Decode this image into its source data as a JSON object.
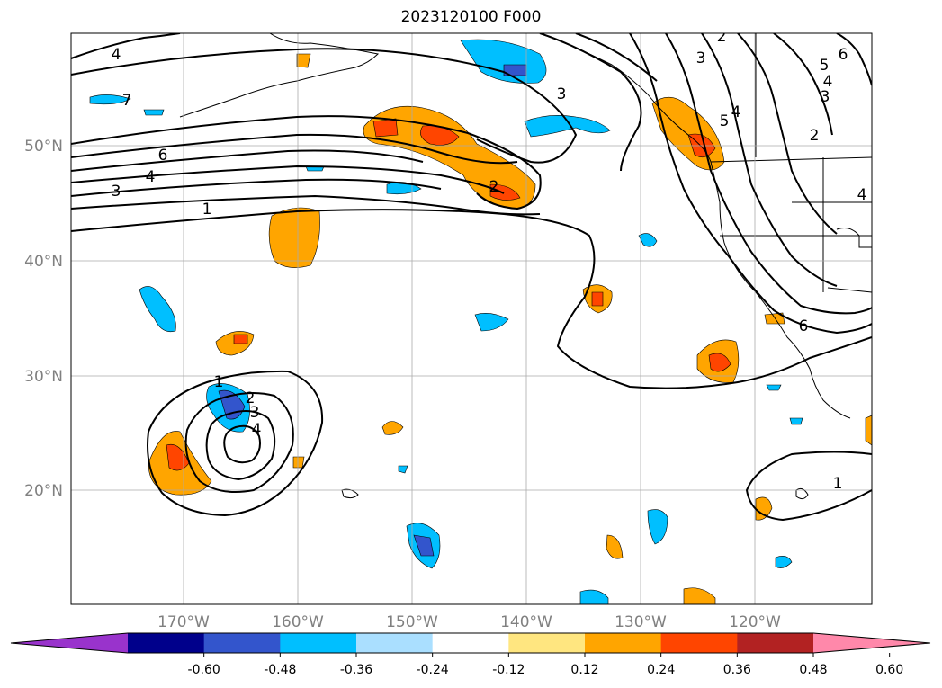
{
  "title": "2023120100 F000",
  "lat_labels": [
    "50°N",
    "40°N",
    "30°N",
    "20°N"
  ],
  "lon_labels": [
    "170°W",
    "160°W",
    "150°W",
    "140°W",
    "130°W",
    "120°W"
  ],
  "contour_labels": [
    "4",
    "7",
    "6",
    "4",
    "3",
    "1",
    "2",
    "3",
    "2",
    "3",
    "5",
    "4",
    "3",
    "5",
    "4",
    "6",
    "2",
    "4",
    "1",
    "2",
    "3",
    "4",
    "6",
    "1"
  ],
  "colorbar": {
    "ticks": [
      "-0.60",
      "-0.48",
      "-0.36",
      "-0.24",
      "-0.12",
      "0.12",
      "0.24",
      "0.36",
      "0.48",
      "0.60"
    ],
    "colors": [
      "#9933cc",
      "#00008b",
      "#3355cc",
      "#00bfff",
      "#aadfff",
      "#ffffff",
      "#ffe680",
      "#ffa500",
      "#ff4500",
      "#b22222",
      "#ff88aa"
    ]
  }
}
